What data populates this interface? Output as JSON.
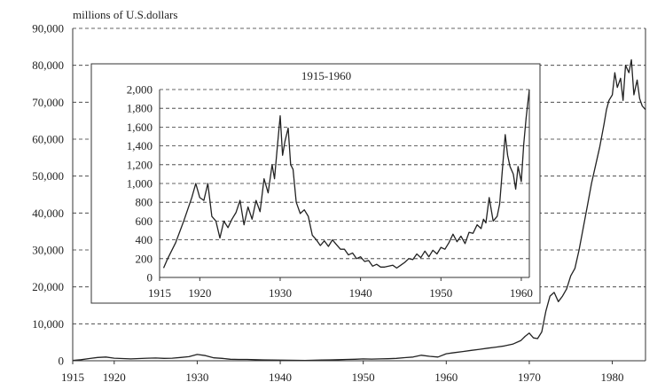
{
  "chart_data": [
    {
      "type": "line",
      "title": "",
      "unit_label": "millions of U.S.dollars",
      "xlabel": "",
      "ylabel": "",
      "xlim": [
        1915,
        1984
      ],
      "ylim": [
        0,
        90000
      ],
      "x_ticks": [
        1915,
        1920,
        1930,
        1940,
        1950,
        1960,
        1970,
        1980
      ],
      "y_ticks": [
        0,
        10000,
        20000,
        30000,
        40000,
        50000,
        60000,
        70000,
        80000,
        90000
      ],
      "y_tick_labels": [
        "0",
        "10,000",
        "20,000",
        "30,000",
        "40,000",
        "50,000",
        "60,000",
        "70,000",
        "80,000",
        "90,000"
      ],
      "grid": "horizontal dashed",
      "legend": "none",
      "series": [
        {
          "values_x": [
            1915,
            1916,
            1917,
            1918,
            1919,
            1920,
            1921,
            1922,
            1923,
            1924,
            1925,
            1926,
            1927,
            1928,
            1929,
            1930,
            1931,
            1932,
            1933,
            1934,
            1935,
            1936,
            1937,
            1938,
            1939,
            1940,
            1941,
            1942,
            1943,
            1944,
            1945,
            1946,
            1947,
            1948,
            1949,
            1950,
            1951,
            1952,
            1953,
            1954,
            1955,
            1956,
            1957,
            1958,
            1959,
            1960,
            1961,
            1962,
            1963,
            1964,
            1965,
            1966,
            1967,
            1968,
            1969,
            1969.5,
            1970,
            1970.5,
            1971,
            1971.5,
            1972,
            1972.5,
            1973,
            1973.5,
            1974,
            1974.5,
            1975,
            1975.5,
            1976,
            1976.5,
            1977,
            1977.5,
            1978,
            1978.5,
            1979,
            1979.3,
            1979.6,
            1980,
            1980.3,
            1980.6,
            1981,
            1981.3,
            1981.6,
            1982,
            1982.3,
            1982.6,
            1983,
            1983.3,
            1983.6,
            1984
          ],
          "values_y": [
            100,
            300,
            600,
            900,
            1000,
            700,
            600,
            500,
            600,
            700,
            750,
            650,
            700,
            900,
            1100,
            1700,
            1400,
            800,
            650,
            400,
            350,
            350,
            300,
            250,
            200,
            180,
            150,
            120,
            100,
            150,
            200,
            250,
            300,
            350,
            400,
            500,
            450,
            500,
            550,
            650,
            850,
            1000,
            1500,
            1200,
            1000,
            1900,
            2200,
            2500,
            2800,
            3100,
            3400,
            3700,
            4000,
            4500,
            5500,
            6600,
            7500,
            6200,
            6000,
            7800,
            13500,
            17500,
            18500,
            16000,
            17500,
            19500,
            23000,
            25000,
            30000,
            36000,
            42000,
            48000,
            53000,
            58000,
            64000,
            68000,
            70500,
            72000,
            78000,
            74000,
            76500,
            70500,
            80000,
            78000,
            81500,
            72000,
            76000,
            71000,
            69000,
            68000
          ]
        }
      ]
    },
    {
      "type": "line",
      "title": "1915-1960",
      "xlabel": "",
      "ylabel": "",
      "xlim": [
        1915,
        1961
      ],
      "ylim": [
        0,
        2000
      ],
      "x_ticks": [
        1915,
        1920,
        1930,
        1940,
        1950,
        1960
      ],
      "y_ticks": [
        0,
        200,
        400,
        600,
        800,
        1000,
        1200,
        1400,
        1600,
        1800,
        2000
      ],
      "y_tick_labels": [
        "0",
        "200",
        "400",
        "600",
        "800",
        "1,000",
        "1,200",
        "1,400",
        "1,600",
        "1,800",
        "2,000"
      ],
      "grid": "horizontal dashed",
      "legend": "none",
      "series": [
        {
          "values_x": [
            1915.5,
            1916,
            1917,
            1918,
            1919,
            1919.5,
            1920,
            1920.5,
            1921,
            1921.5,
            1922,
            1922.5,
            1923,
            1923.5,
            1924,
            1924.5,
            1925,
            1925.5,
            1926,
            1926.5,
            1927,
            1927.5,
            1928,
            1928.5,
            1929,
            1929.3,
            1929.6,
            1930,
            1930.3,
            1930.6,
            1931,
            1931.3,
            1931.6,
            1932,
            1932.5,
            1933,
            1933.5,
            1934,
            1934.5,
            1935,
            1935.5,
            1936,
            1936.5,
            1937,
            1937.5,
            1938,
            1938.5,
            1939,
            1939.5,
            1940,
            1940.5,
            1941,
            1941.5,
            1942,
            1942.5,
            1943,
            1943.5,
            1944,
            1944.5,
            1945,
            1945.5,
            1946,
            1946.5,
            1947,
            1947.5,
            1948,
            1948.5,
            1949,
            1949.5,
            1950,
            1950.5,
            1951,
            1951.5,
            1952,
            1952.5,
            1953,
            1953.5,
            1954,
            1954.5,
            1955,
            1955.3,
            1955.6,
            1956,
            1956.5,
            1957,
            1957.3,
            1957.6,
            1958,
            1958.3,
            1958.6,
            1959,
            1959.3,
            1959.6,
            1960,
            1960.3,
            1960.6,
            1961
          ],
          "values_y": [
            100,
            200,
            370,
            600,
            850,
            1000,
            850,
            820,
            1000,
            650,
            600,
            420,
            600,
            530,
            620,
            690,
            820,
            560,
            750,
            620,
            820,
            700,
            1050,
            900,
            1200,
            1050,
            1350,
            1720,
            1300,
            1450,
            1590,
            1200,
            1150,
            800,
            680,
            720,
            650,
            450,
            400,
            340,
            390,
            330,
            400,
            350,
            300,
            300,
            240,
            260,
            200,
            220,
            170,
            180,
            120,
            140,
            110,
            110,
            120,
            130,
            100,
            130,
            160,
            200,
            190,
            250,
            210,
            280,
            220,
            290,
            250,
            320,
            300,
            370,
            460,
            380,
            440,
            360,
            480,
            470,
            560,
            520,
            620,
            580,
            850,
            600,
            650,
            780,
            1100,
            1520,
            1300,
            1180,
            1100,
            940,
            1180,
            1020,
            1420,
            1700,
            2000
          ]
        }
      ]
    }
  ]
}
